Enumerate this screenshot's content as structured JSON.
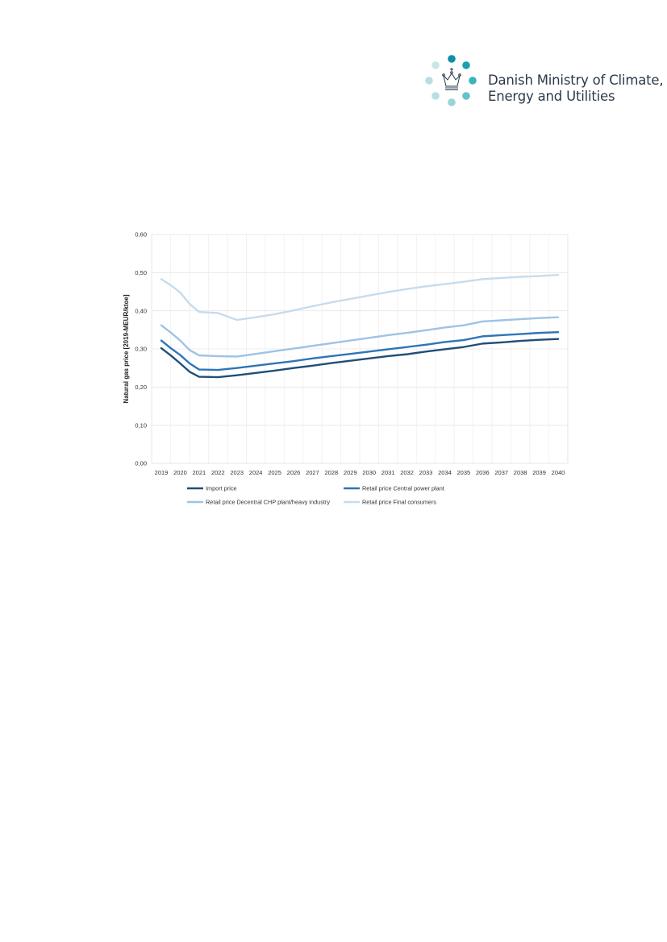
{
  "header": {
    "logo_line1": "Danish Ministry of Climate,",
    "logo_line2": "Energy and Utilities",
    "logo_dot_colors": [
      "#0f8ea3",
      "#1c9fb0",
      "#3bb3bd",
      "#62c3c8",
      "#9ad4d8",
      "#b6dfe2",
      "#b6dfe2",
      "#c9e6e8"
    ]
  },
  "chart_data": {
    "type": "line",
    "ylabel": "Natural gas price [2019-MEUR/ktoe]",
    "xlabel": "",
    "ylim": [
      0,
      0.6
    ],
    "yticks": [
      0.0,
      0.1,
      0.2,
      0.3,
      0.4,
      0.5,
      0.6
    ],
    "ytick_labels": [
      "0,00",
      "0,10",
      "0,20",
      "0,30",
      "0,40",
      "0,50",
      "0,60"
    ],
    "grid": true,
    "legend_position": "bottom",
    "categories": [
      "2019",
      "2020",
      "2021",
      "2022",
      "2023",
      "2024",
      "2025",
      "2026",
      "2027",
      "2028",
      "2029",
      "2030",
      "2031",
      "2032",
      "2033",
      "2034",
      "2035",
      "2036",
      "2037",
      "2038",
      "2039",
      "2040"
    ],
    "x": [
      2019.0,
      2019.5,
      2020.0,
      2020.5,
      2021.0,
      2022.0,
      2023.0,
      2024.0,
      2025.0,
      2026.0,
      2027.0,
      2028.0,
      2029.0,
      2030.0,
      2031.0,
      2032.0,
      2033.0,
      2034.0,
      2035.0,
      2036.0,
      2037.0,
      2038.0,
      2039.0,
      2040.0
    ],
    "series": [
      {
        "name": "Import price",
        "color": "#1f4e79",
        "values": [
          0.302,
          0.283,
          0.262,
          0.24,
          0.227,
          0.226,
          0.231,
          0.237,
          0.243,
          0.25,
          0.256,
          0.263,
          0.269,
          0.275,
          0.281,
          0.286,
          0.293,
          0.299,
          0.305,
          0.314,
          0.317,
          0.321,
          0.324,
          0.326
        ]
      },
      {
        "name": "Retail price Central power plant",
        "color": "#2e75b6",
        "values": [
          0.322,
          0.302,
          0.284,
          0.262,
          0.246,
          0.245,
          0.25,
          0.256,
          0.262,
          0.268,
          0.275,
          0.281,
          0.287,
          0.293,
          0.299,
          0.305,
          0.311,
          0.318,
          0.323,
          0.333,
          0.336,
          0.339,
          0.342,
          0.344
        ]
      },
      {
        "name": "Retail price Decentral CHP plant/heavy industry",
        "color": "#9dc3e6",
        "values": [
          0.362,
          0.343,
          0.322,
          0.297,
          0.283,
          0.281,
          0.28,
          0.287,
          0.294,
          0.301,
          0.308,
          0.315,
          0.322,
          0.329,
          0.336,
          0.342,
          0.349,
          0.356,
          0.362,
          0.372,
          0.375,
          0.378,
          0.381,
          0.383
        ]
      },
      {
        "name": "Retail price Final consumers",
        "color": "#c5dcef",
        "values": [
          0.483,
          0.467,
          0.448,
          0.418,
          0.397,
          0.394,
          0.376,
          0.383,
          0.391,
          0.401,
          0.412,
          0.422,
          0.431,
          0.44,
          0.449,
          0.457,
          0.464,
          0.47,
          0.476,
          0.483,
          0.486,
          0.489,
          0.491,
          0.494
        ]
      }
    ]
  }
}
